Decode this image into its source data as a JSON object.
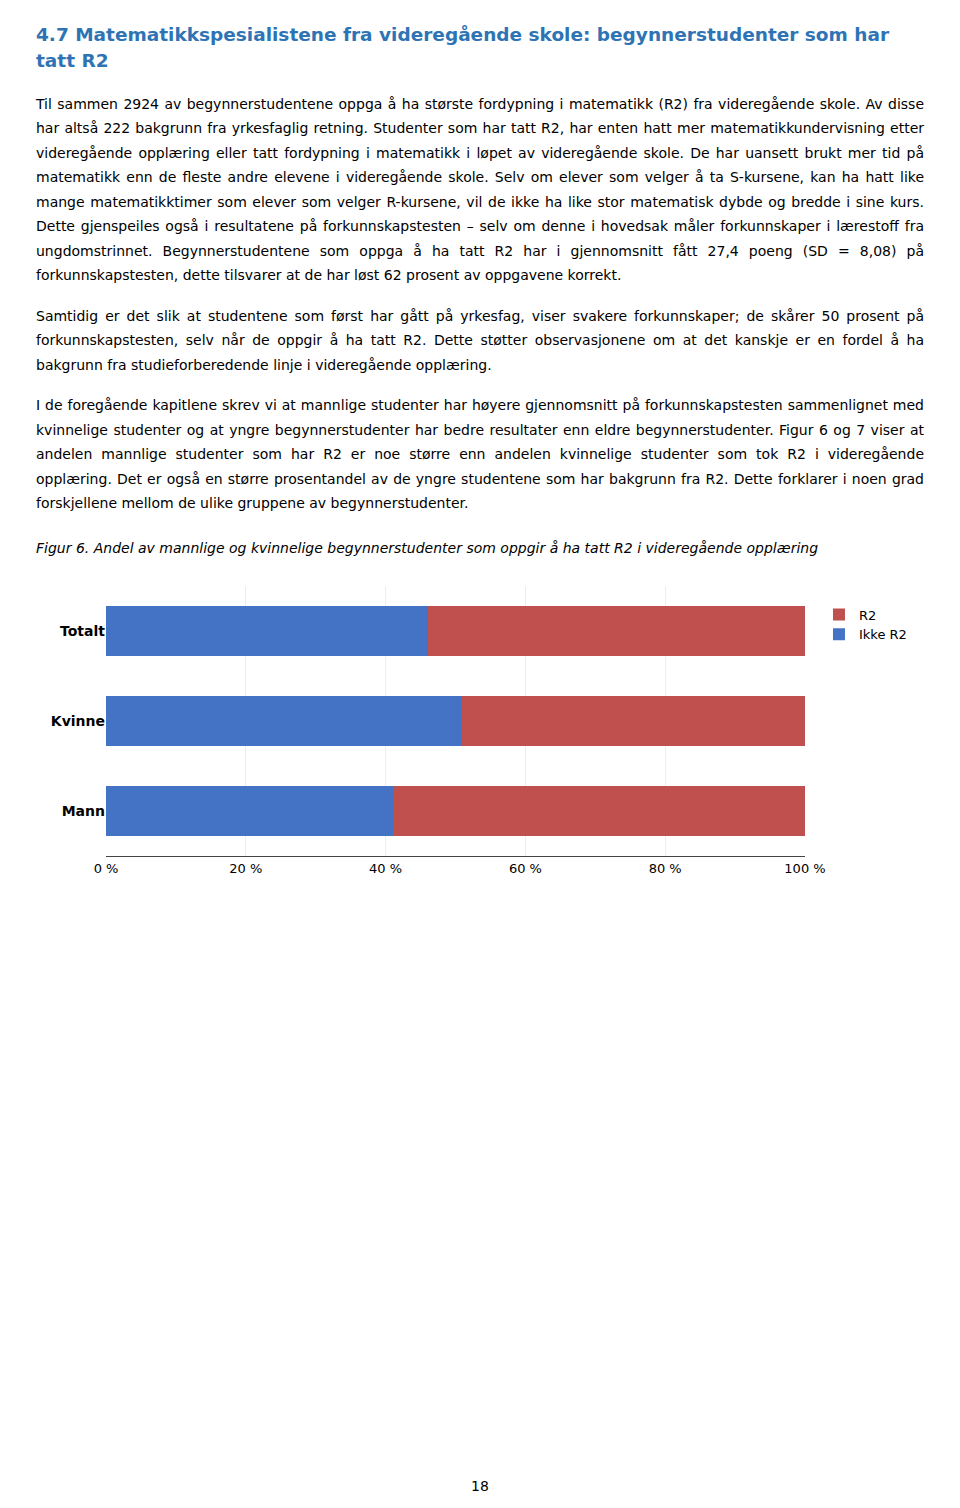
{
  "chart_data": {
    "type": "bar",
    "title": "4.7 Matematikkspesialistene fra videregående skole: begynnerstudenter som har tatt R2",
    "subtitle": "Figur 6. Andel av mannlige og kvinnelige begynnerstudenter som oppgir å ha tatt R2 i videregående opplæring",
    "annotations": [
      "Til sammen 2924 av begynnerstudentene oppga å ha største fordypning i matematikk (R2) fra videregående skole. Av disse har altså 222 bakgrunn fra yrkesfaglig retning. Studenter som har tatt R2, har enten hatt mer matematikkundervisning etter videregående opplæring eller tatt fordypning i matematikk i løpet av videregående skole. De har uansett brukt mer tid på matematikk enn de fleste andre elevene i videregående skole. Selv om elever som velger å ta S-kursene, kan ha hatt like mange matematikktimer som elever som velger R-kursene, vil de ikke ha like stor matematisk dybde og bredde i sine kurs. Dette gjenspeiles også i resultatene på forkunnskapstesten – selv om denne i hovedsak måler forkunnskaper i lærestoff fra ungdomstrinnet. Begynnerstudentene som oppga å ha tatt R2 har i gjennomsnitt fått 27,4 poeng (SD = 8,08) på forkunnskapstesten, dette tilsvarer at de har løst 62 prosent av oppgavene korrekt.",
      "Samtidig er det slik at studentene som først har gått på yrkesfag, viser svakere forkunnskaper; de skårer 50 prosent på forkunnskapstesten, selv når de oppgir å ha tatt R2. Dette støtter observasjonene om at det kanskje er en fordel å ha bakgrunn fra studieforberedende linje i videregående opplæring.",
      "I de foregående kapitlene skrev vi at mannlige studenter har høyere gjennomsnitt på forkunnskapstesten sammenlignet med kvinnelige studenter og at yngre begynnerstudenter har bedre resultater enn eldre begynnerstudenter. Figur 6 og 7 viser at andelen mannlige studenter som har R2 er noe større enn andelen kvinnelige studenter som tok R2 i videregående opplæring. Det er også en større prosentandel av de yngre studentene som har bakgrunn fra R2. Dette forklarer i noen grad forskjellene mellom de ulike gruppene av begynnerstudenter.",
      "18"
    ],
    "orientation": "horizontal",
    "stacked": true,
    "categories": [
      "Totalt",
      "Kvinne",
      "Mann"
    ],
    "series": [
      {
        "name": "Ikke R2",
        "color": "#4472C4",
        "values": [
          46,
          51,
          41
        ]
      },
      {
        "name": "R2",
        "color": "#C0504D",
        "values": [
          54,
          49,
          59
        ]
      }
    ],
    "xlim": [
      0,
      100
    ],
    "xticks": [
      {
        "value": 0,
        "label": "0 %"
      },
      {
        "value": 20,
        "label": "20 %"
      },
      {
        "value": 40,
        "label": "40 %"
      },
      {
        "value": 60,
        "label": "60 %"
      },
      {
        "value": 80,
        "label": "80 %"
      },
      {
        "value": 100,
        "label": "100 %"
      }
    ],
    "grid": true,
    "legend": "right"
  }
}
